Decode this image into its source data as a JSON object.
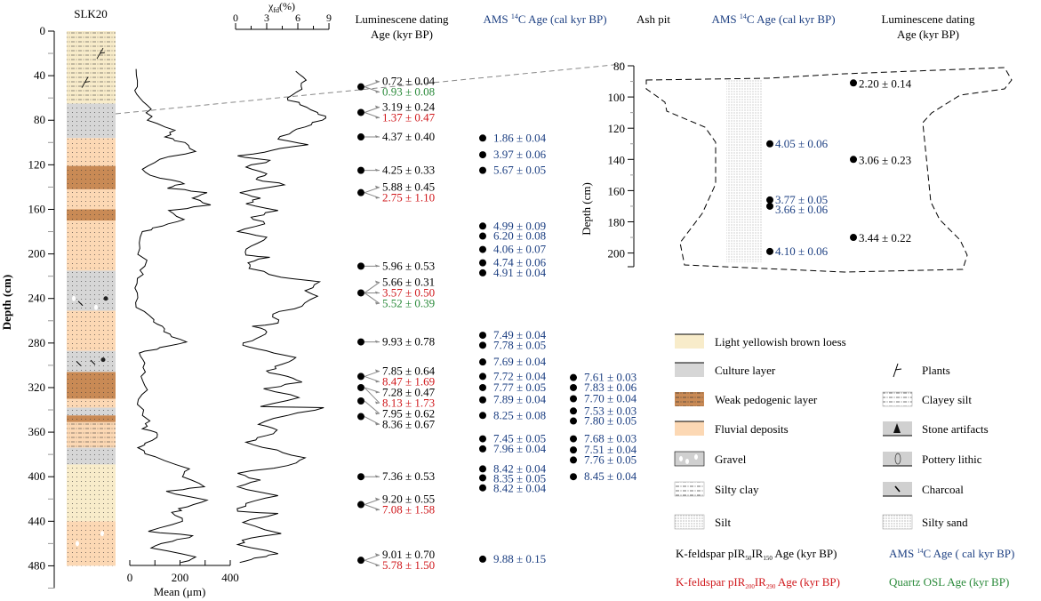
{
  "headers": {
    "section": "SLK20",
    "lum_title_1": "Luminescene dating",
    "lum_title_2": "Age (kyr BP)",
    "ams_pre": "AMS ",
    "ams_sup": "14",
    "ams_post": "C Age (cal kyr BP)",
    "ash_pit": "Ash pit",
    "ash_ams_pre": "AMS ",
    "ash_ams_sup": "14",
    "ash_ams_post": "C Age (cal kyr BP)",
    "ash_lum_title_1": "Luminescene dating",
    "ash_lum_title_2": "Age (kyr BP)"
  },
  "colors": {
    "ams": "#1c3f82",
    "pir200": "#d0181c",
    "osl": "#2a8a3a",
    "pir50": "#000000",
    "loess": "#f8ecca",
    "culture": "#d6d6d6",
    "pedogenic": "#c98a55",
    "fluvial": "#fcd8b4"
  },
  "lithology": [
    {
      "from": 0,
      "to": 65,
      "type": "loess"
    },
    {
      "from": 65,
      "to": 96,
      "type": "culture"
    },
    {
      "from": 96,
      "to": 121,
      "type": "fluvial"
    },
    {
      "from": 121,
      "to": 142,
      "type": "pedogenic"
    },
    {
      "from": 142,
      "to": 160,
      "type": "fluvial"
    },
    {
      "from": 160,
      "to": 170,
      "type": "pedogenic"
    },
    {
      "from": 170,
      "to": 215,
      "type": "fluvial"
    },
    {
      "from": 215,
      "to": 251,
      "type": "culture"
    },
    {
      "from": 251,
      "to": 287,
      "type": "fluvial"
    },
    {
      "from": 287,
      "to": 306,
      "type": "culture"
    },
    {
      "from": 306,
      "to": 330,
      "type": "pedogenic"
    },
    {
      "from": 330,
      "to": 338,
      "type": "fluvial"
    },
    {
      "from": 338,
      "to": 345,
      "type": "culture"
    },
    {
      "from": 345,
      "to": 351,
      "type": "pedogenic"
    },
    {
      "from": 351,
      "to": 374,
      "type": "fluvial"
    },
    {
      "from": 374,
      "to": 389,
      "type": "culture"
    },
    {
      "from": 389,
      "to": 440,
      "type": "loess"
    },
    {
      "from": 440,
      "to": 480,
      "type": "fluvial"
    }
  ],
  "chart_data": [
    {
      "type": "line",
      "title": "",
      "xlabel": "Mean (μm)",
      "ylabel": "Depth (cm)",
      "xlim": [
        0,
        400
      ],
      "ylim": [
        0,
        500
      ],
      "x_ticks": [
        0,
        200,
        400
      ],
      "y_ticks": [
        0,
        40,
        80,
        120,
        160,
        200,
        240,
        280,
        320,
        360,
        400,
        440,
        480
      ],
      "points": [
        [
          34,
          25
        ],
        [
          50,
          30
        ],
        [
          60,
          40
        ],
        [
          70,
          85
        ],
        [
          80,
          70
        ],
        [
          89,
          180
        ],
        [
          95,
          140
        ],
        [
          100,
          220
        ],
        [
          108,
          262
        ],
        [
          115,
          120
        ],
        [
          124,
          50
        ],
        [
          132,
          120
        ],
        [
          137,
          216
        ],
        [
          141,
          150
        ],
        [
          145,
          308
        ],
        [
          150,
          250
        ],
        [
          156,
          322
        ],
        [
          161,
          155
        ],
        [
          169,
          216
        ],
        [
          175,
          130
        ],
        [
          180,
          50
        ],
        [
          195,
          40
        ],
        [
          211,
          60
        ],
        [
          222,
          30
        ],
        [
          235,
          30
        ],
        [
          248,
          25
        ],
        [
          259,
          96
        ],
        [
          265,
          130
        ],
        [
          272,
          160
        ],
        [
          279,
          226
        ],
        [
          284,
          120
        ],
        [
          289,
          38
        ],
        [
          298,
          60
        ],
        [
          310,
          45
        ],
        [
          322,
          70
        ],
        [
          335,
          30
        ],
        [
          350,
          80
        ],
        [
          357,
          50
        ],
        [
          362,
          110
        ],
        [
          370,
          60
        ],
        [
          374,
          32
        ],
        [
          382,
          100
        ],
        [
          393,
          237
        ],
        [
          400,
          210
        ],
        [
          409,
          297
        ],
        [
          413,
          145
        ],
        [
          421,
          308
        ],
        [
          427,
          230
        ],
        [
          432,
          167
        ],
        [
          440,
          210
        ],
        [
          449,
          74
        ],
        [
          453,
          250
        ],
        [
          458,
          170
        ],
        [
          464,
          85
        ],
        [
          472,
          262
        ],
        [
          477,
          203
        ]
      ]
    },
    {
      "type": "line",
      "title": "",
      "xlabel_main": "χ",
      "xlabel_sub": "fd",
      "xlabel_unit": "(%)",
      "ylabel": "Depth (cm)",
      "xlim": [
        0,
        9
      ],
      "ylim": [
        0,
        500
      ],
      "x_ticks": [
        0,
        3,
        6,
        9
      ],
      "points": [
        [
          36,
          5.8
        ],
        [
          44,
          6.8
        ],
        [
          52,
          6.4
        ],
        [
          60,
          5.0
        ],
        [
          66,
          6.2
        ],
        [
          73,
          7.9
        ],
        [
          78,
          8.7
        ],
        [
          84,
          7.3
        ],
        [
          90,
          5.5
        ],
        [
          97,
          4.1
        ],
        [
          102,
          7.0
        ],
        [
          107,
          3.5
        ],
        [
          112,
          0.2
        ],
        [
          116,
          3.3
        ],
        [
          122,
          1.0
        ],
        [
          128,
          3.0
        ],
        [
          133,
          2.0
        ],
        [
          138,
          4.7
        ],
        [
          145,
          0.4
        ],
        [
          150,
          2.4
        ],
        [
          155,
          1.0
        ],
        [
          161,
          4.1
        ],
        [
          167,
          1.5
        ],
        [
          173,
          2.8
        ],
        [
          180,
          0.2
        ],
        [
          185,
          3.0
        ],
        [
          193,
          1.5
        ],
        [
          201,
          1.0
        ],
        [
          203,
          3.3
        ],
        [
          208,
          1.2
        ],
        [
          213,
          1.3
        ],
        [
          221,
          4.4
        ],
        [
          225,
          8.1
        ],
        [
          233,
          6.7
        ],
        [
          238,
          7.9
        ],
        [
          247,
          6.4
        ],
        [
          254,
          3.6
        ],
        [
          262,
          4.1
        ],
        [
          265,
          1.6
        ],
        [
          270,
          3.0
        ],
        [
          276,
          2.0
        ],
        [
          282,
          0.7
        ],
        [
          287,
          3.0
        ],
        [
          293,
          5.8
        ],
        [
          299,
          4.5
        ],
        [
          305,
          3.0
        ],
        [
          310,
          5.0
        ],
        [
          315,
          6.4
        ],
        [
          321,
          2.7
        ],
        [
          329,
          6.1
        ],
        [
          337,
          2.4
        ],
        [
          338,
          8.5
        ],
        [
          345,
          5.0
        ],
        [
          353,
          2.2
        ],
        [
          358,
          4.0
        ],
        [
          363,
          3.0
        ],
        [
          369,
          1.0
        ],
        [
          376,
          4.0
        ],
        [
          383,
          6.7
        ],
        [
          390,
          5.0
        ],
        [
          397,
          0.2
        ],
        [
          403,
          2.4
        ],
        [
          409,
          0.2
        ],
        [
          417,
          4.1
        ],
        [
          424,
          1.0
        ],
        [
          431,
          0.2
        ],
        [
          433,
          4.1
        ],
        [
          441,
          0.7
        ],
        [
          451,
          4.4
        ],
        [
          455,
          1.5
        ],
        [
          461,
          0.2
        ],
        [
          469,
          4.1
        ],
        [
          473,
          1.8
        ],
        [
          477,
          0.4
        ]
      ]
    }
  ],
  "depth_axis": {
    "label": "Depth (cm)",
    "ticks": [
      0,
      40,
      80,
      120,
      160,
      200,
      240,
      280,
      320,
      360,
      400,
      440,
      480
    ],
    "max": 500
  },
  "luminescence": [
    {
      "depth": 50,
      "ages": [
        {
          "text": "0.72 ± 0.04",
          "method": "pir50"
        },
        {
          "text": "0.93 ± 0.08",
          "method": "osl"
        }
      ]
    },
    {
      "depth": 73,
      "ages": [
        {
          "text": "3.19 ± 0.24",
          "method": "pir50"
        },
        {
          "text": "1.37 ± 0.47",
          "method": "pir200"
        }
      ]
    },
    {
      "depth": 95,
      "ages": [
        {
          "text": "4.37 ± 0.40",
          "method": "pir50"
        }
      ]
    },
    {
      "depth": 125,
      "ages": [
        {
          "text": "4.25 ± 0.33",
          "method": "pir50"
        }
      ]
    },
    {
      "depth": 145,
      "ages": [
        {
          "text": "5.88 ± 0.45",
          "method": "pir50"
        },
        {
          "text": "2.75 ± 1.10",
          "method": "pir200"
        }
      ]
    },
    {
      "depth": 211,
      "ages": [
        {
          "text": "5.96 ± 0.53",
          "method": "pir50"
        }
      ]
    },
    {
      "depth": 235,
      "ages": [
        {
          "text": "5.66 ± 0.31",
          "method": "pir50"
        },
        {
          "text": "3.57 ± 0.50",
          "method": "pir200"
        },
        {
          "text": "5.52 ± 0.39",
          "method": "osl"
        }
      ]
    },
    {
      "depth": 279,
      "ages": [
        {
          "text": "9.93 ± 0.78",
          "method": "pir50"
        }
      ]
    },
    {
      "depth": 310,
      "ages": [
        {
          "text": "7.85 ± 0.64",
          "method": "pir50"
        },
        {
          "text": "8.47 ± 1.69",
          "method": "pir200"
        }
      ]
    },
    {
      "depth": 320,
      "ages": [
        {
          "text": "7.28 ± 0.47",
          "method": "pir50"
        },
        {
          "text": "8.13 ± 1.73",
          "method": "pir200"
        }
      ]
    },
    {
      "depth": 332,
      "ages": [
        {
          "text": "7.95 ± 0.62",
          "method": "pir50"
        }
      ]
    },
    {
      "depth": 346,
      "ages": [
        {
          "text": "8.36 ± 0.67",
          "method": "pir50"
        }
      ]
    },
    {
      "depth": 400,
      "ages": [
        {
          "text": "7.36 ± 0.53",
          "method": "pir50"
        }
      ]
    },
    {
      "depth": 425,
      "ages": [
        {
          "text": "9.20 ± 0.55",
          "method": "pir50"
        },
        {
          "text": "7.08 ± 1.58",
          "method": "pir200"
        }
      ]
    },
    {
      "depth": 475,
      "ages": [
        {
          "text": "9.01 ± 0.70",
          "method": "pir50"
        },
        {
          "text": "5.78 ± 1.50",
          "method": "pir200"
        }
      ]
    }
  ],
  "ams_col1": [
    {
      "depth": 96,
      "text": "1.86 ± 0.04"
    },
    {
      "depth": 111,
      "text": "3.97 ± 0.06"
    },
    {
      "depth": 125,
      "text": "5.67 ± 0.05"
    },
    {
      "depth": 175,
      "text": "4.99 ± 0.09"
    },
    {
      "depth": 184,
      "text": "6.20 ± 0.08"
    },
    {
      "depth": 196,
      "text": "4.06 ± 0.07"
    },
    {
      "depth": 208,
      "text": "4.74 ± 0.06"
    },
    {
      "depth": 217,
      "text": "4.91 ± 0.04"
    },
    {
      "depth": 273,
      "text": "7.49 ± 0.04"
    },
    {
      "depth": 282,
      "text": "7.78 ± 0.05"
    },
    {
      "depth": 297,
      "text": "7.69 ± 0.04"
    },
    {
      "depth": 310,
      "text": "7.72 ± 0.04"
    },
    {
      "depth": 320,
      "text": "7.77 ± 0.05"
    },
    {
      "depth": 331,
      "text": "7.89 ± 0.04"
    },
    {
      "depth": 345,
      "text": "8.25 ± 0.08"
    },
    {
      "depth": 366,
      "text": "7.45 ± 0.05"
    },
    {
      "depth": 375,
      "text": "7.96 ± 0.04"
    },
    {
      "depth": 393,
      "text": "8.42 ± 0.04"
    },
    {
      "depth": 401,
      "text": "8.35 ± 0.05"
    },
    {
      "depth": 410,
      "text": "8.42 ± 0.04"
    },
    {
      "depth": 474,
      "text": "9.88 ± 0.15"
    }
  ],
  "ams_col2": [
    {
      "depth": 311,
      "text": "7.61 ± 0.03"
    },
    {
      "depth": 320,
      "text": "7.83 ± 0.06"
    },
    {
      "depth": 330,
      "text": "7.70 ± 0.04"
    },
    {
      "depth": 341,
      "text": "7.53 ± 0.03"
    },
    {
      "depth": 350,
      "text": "7.80 ± 0.05"
    },
    {
      "depth": 366,
      "text": "7.68 ± 0.03"
    },
    {
      "depth": 376,
      "text": "7.51 ± 0.04"
    },
    {
      "depth": 385,
      "text": "7.76 ± 0.05"
    },
    {
      "depth": 400,
      "text": "8.45 ± 0.04"
    }
  ],
  "ash_pit": {
    "depth_axis": {
      "label": "Depth (cm)",
      "ticks": [
        80,
        100,
        120,
        140,
        160,
        180,
        200
      ]
    },
    "ams": [
      {
        "depth": 130,
        "text": "4.05 ± 0.06"
      },
      {
        "depth": 166,
        "text": "3.77 ± 0.05"
      },
      {
        "depth": 170,
        "text": "3.66 ± 0.06"
      },
      {
        "depth": 199,
        "text": "4.10 ± 0.06"
      }
    ],
    "luminescence": [
      {
        "depth": 91,
        "text": "2.20 ± 0.14"
      },
      {
        "depth": 140,
        "text": "3.06 ± 0.23"
      },
      {
        "depth": 190,
        "text": "3.44 ± 0.22"
      }
    ]
  },
  "legend": {
    "left": [
      {
        "label": "Light yellowish brown loess",
        "symbol": "loess"
      },
      {
        "label": "Culture layer",
        "symbol": "culture"
      },
      {
        "label": "Weak pedogenic layer",
        "symbol": "pedogenic"
      },
      {
        "label": "Fluvial deposits",
        "symbol": "fluvial"
      },
      {
        "label": "Gravel",
        "symbol": "gravel"
      },
      {
        "label": "Silty clay",
        "symbol": "silty-clay"
      },
      {
        "label": "Silt",
        "symbol": "silt"
      }
    ],
    "right": [
      {
        "label": "Plants",
        "symbol": "plants"
      },
      {
        "label": "Clayey silt",
        "symbol": "clayey-silt"
      },
      {
        "label": "Stone artifacts",
        "symbol": "stone-artifacts"
      },
      {
        "label": "Pottery lithic",
        "symbol": "pottery"
      },
      {
        "label": "Charcoal",
        "symbol": "charcoal"
      },
      {
        "label": "Silty sand",
        "symbol": "silty-sand"
      }
    ],
    "methods": {
      "pir50": {
        "pre": "K-feldspar pIR",
        "s1": "50",
        "mid": "IR",
        "s2": "150",
        "post": " Age (kyr BP)"
      },
      "ams": {
        "pre": "AMS ",
        "sup": "14",
        "post": "C Age ( cal kyr BP)"
      },
      "pir200": {
        "pre": "K-feldspar pIR",
        "s1": "200",
        "mid": "IR",
        "s2": "290",
        "post": " Age (kyr BP)"
      },
      "osl": {
        "text": "Quartz OSL Age (kyr BP)"
      }
    }
  }
}
